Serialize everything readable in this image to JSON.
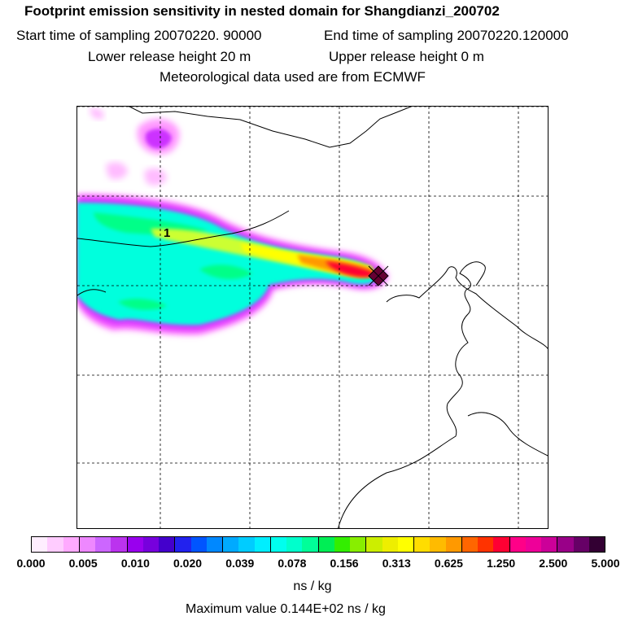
{
  "header": {
    "title": "Footprint emission sensitivity in nested domain for Shangdianzi_200702",
    "start_sampling": "Start time of sampling 20070220. 90000",
    "end_sampling": "End time of sampling 20070220.120000",
    "lower_release": "Lower release height   20 m",
    "upper_release": "Upper release height    0 m",
    "met_data": "Meteorological data used are from ECMWF"
  },
  "map": {
    "location_marker_label": "1",
    "grid_lines": "dashed",
    "plume_colors": [
      "#ff66ff",
      "#cc33ff",
      "#00ffdd",
      "#00ff88",
      "#ccff33",
      "#ffff00",
      "#ff9900",
      "#ff0033"
    ],
    "receptor_marker": "diamond-marker-icon"
  },
  "colorbar": {
    "colors": [
      "#ffeeff",
      "#ffccff",
      "#ffaaff",
      "#ee88ff",
      "#cc66ff",
      "#bb33ee",
      "#9900ee",
      "#7700dd",
      "#4400cc",
      "#2222ee",
      "#0055ff",
      "#0088ff",
      "#00aaff",
      "#00ccff",
      "#00eeff",
      "#00ffee",
      "#00ffcc",
      "#00ff99",
      "#00ee55",
      "#33ee00",
      "#88ee00",
      "#ccee00",
      "#eeee00",
      "#ffff00",
      "#ffdd00",
      "#ffbb00",
      "#ff9900",
      "#ff6600",
      "#ff3300",
      "#ff0033",
      "#ff0088",
      "#ee0099",
      "#cc0099",
      "#990088",
      "#660066",
      "#330033"
    ],
    "tick_labels": [
      "0.000",
      "0.005",
      "0.010",
      "0.020",
      "0.039",
      "0.078",
      "0.156",
      "0.313",
      "0.625",
      "1.250",
      "2.500",
      "5.000"
    ],
    "unit": "ns / kg",
    "max_value": "Maximum value  0.144E+02 ns / kg"
  }
}
